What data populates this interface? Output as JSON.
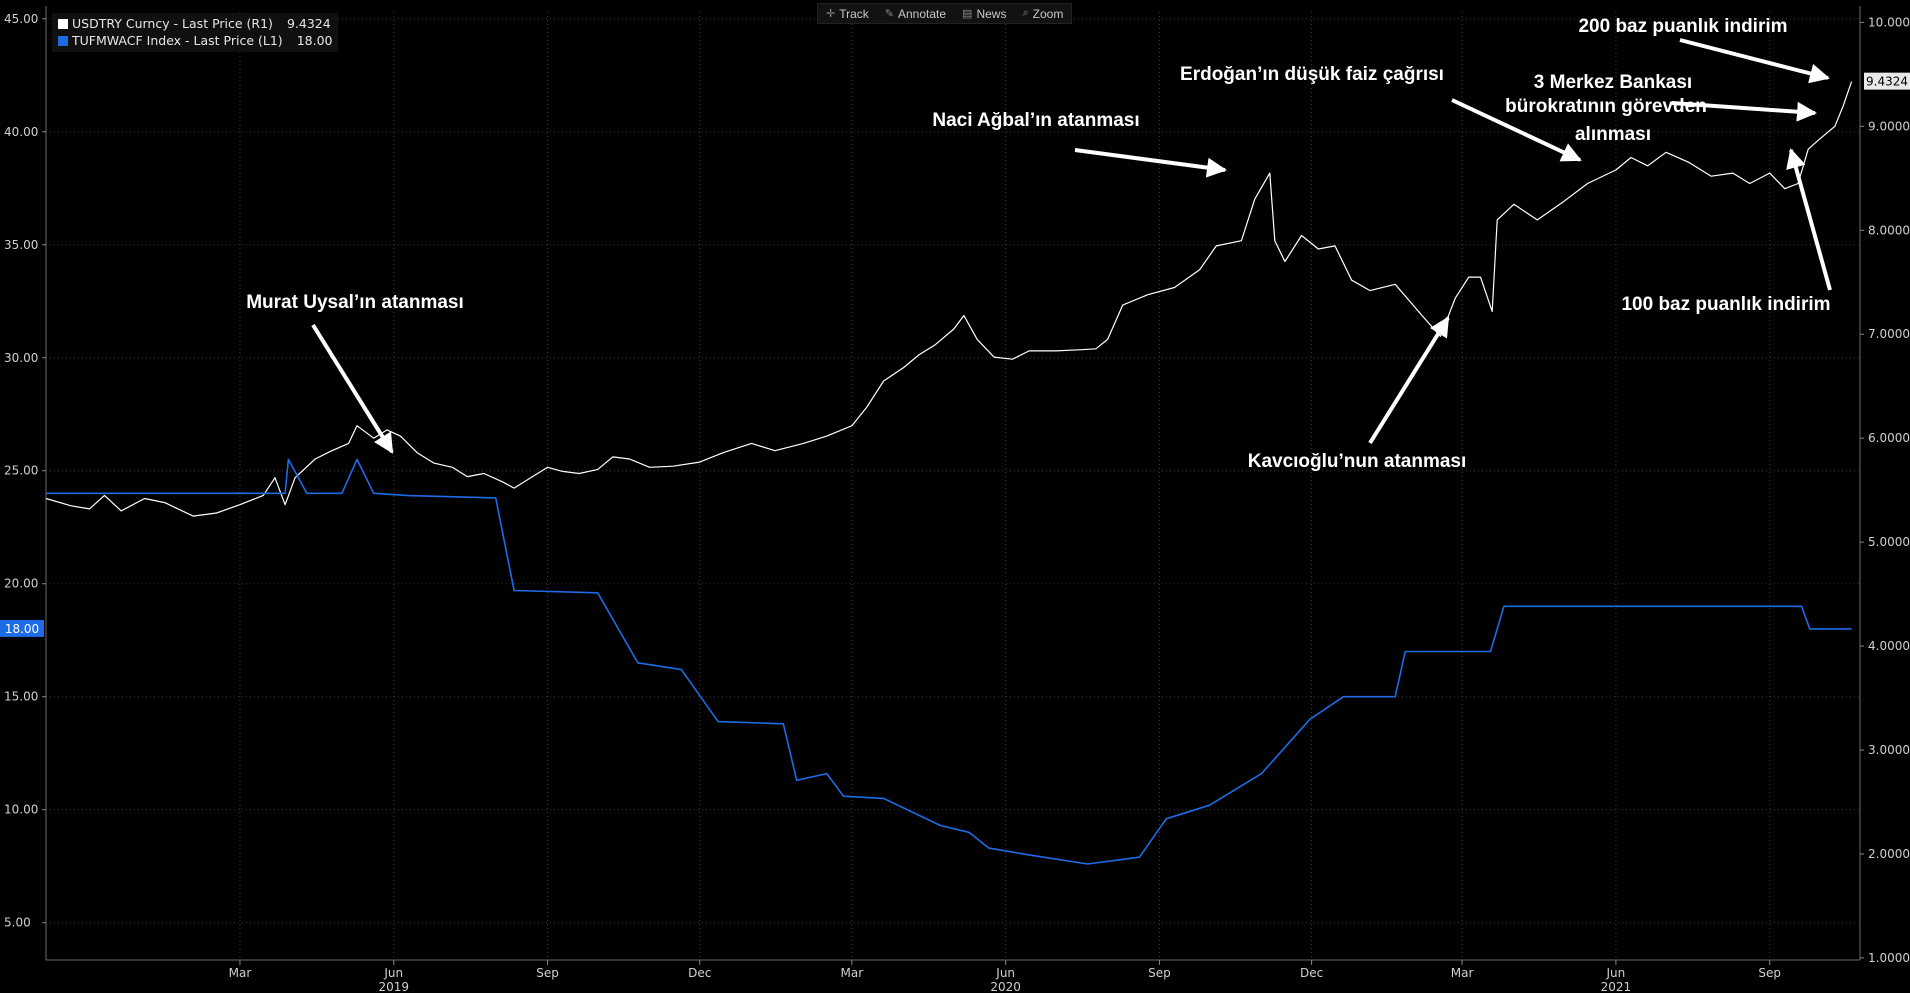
{
  "toolbar": {
    "items": [
      {
        "label": "Track",
        "icon": "crosshair-icon"
      },
      {
        "label": "Annotate",
        "icon": "pencil-icon"
      },
      {
        "label": "News",
        "icon": "newspaper-icon"
      },
      {
        "label": "Zoom",
        "icon": "magnifier-icon"
      }
    ]
  },
  "legend": [
    {
      "label": "USDTRY Curncy - Last Price (R1)",
      "value": "9.4324",
      "color": "#ffffff"
    },
    {
      "label": "TUFMWACF Index - Last Price (L1)",
      "value": "18.00",
      "color": "#1e6be6"
    }
  ],
  "chart_data": {
    "type": "line",
    "background": "#000000",
    "grid": "dotted",
    "x_axis": {
      "range": [
        "2018-11-05",
        "2021-10-25"
      ],
      "ticks": [
        {
          "date": "2019-03-01",
          "label": "Mar"
        },
        {
          "date": "2019-06-01",
          "label": "Jun"
        },
        {
          "date": "2019-09-01",
          "label": "Sep"
        },
        {
          "date": "2019-12-01",
          "label": "Dec"
        },
        {
          "date": "2020-03-01",
          "label": "Mar"
        },
        {
          "date": "2020-06-01",
          "label": "Jun"
        },
        {
          "date": "2020-09-01",
          "label": "Sep"
        },
        {
          "date": "2020-12-01",
          "label": "Dec"
        },
        {
          "date": "2021-03-01",
          "label": "Mar"
        },
        {
          "date": "2021-06-01",
          "label": "Jun"
        },
        {
          "date": "2021-09-01",
          "label": "Sep"
        }
      ],
      "years": [
        {
          "date": "2019-06-01",
          "label": "2019"
        },
        {
          "date": "2020-06-01",
          "label": "2020"
        },
        {
          "date": "2021-06-01",
          "label": "2021"
        }
      ]
    },
    "left_axis": {
      "ylim": [
        3.35,
        45.3
      ],
      "ticks": [
        5,
        10,
        15,
        20,
        25,
        30,
        35,
        40,
        45
      ]
    },
    "right_axis": {
      "ylim": [
        0.98,
        10.1
      ],
      "ticks": [
        1,
        2,
        3,
        4,
        5,
        6,
        7,
        8,
        9,
        10
      ]
    },
    "series": [
      {
        "name": "USDTRY Curncy - Last Price (R1)",
        "axis": "right",
        "color": "#ffffff",
        "last_label": "9.4324",
        "points": [
          [
            "2018-11-05",
            5.42
          ],
          [
            "2018-11-20",
            5.35
          ],
          [
            "2018-12-01",
            5.32
          ],
          [
            "2018-12-10",
            5.45
          ],
          [
            "2018-12-20",
            5.3
          ],
          [
            "2019-01-03",
            5.42
          ],
          [
            "2019-01-15",
            5.38
          ],
          [
            "2019-02-01",
            5.25
          ],
          [
            "2019-02-15",
            5.28
          ],
          [
            "2019-03-01",
            5.36
          ],
          [
            "2019-03-15",
            5.45
          ],
          [
            "2019-03-22",
            5.62
          ],
          [
            "2019-03-28",
            5.36
          ],
          [
            "2019-04-03",
            5.62
          ],
          [
            "2019-04-15",
            5.8
          ],
          [
            "2019-04-25",
            5.88
          ],
          [
            "2019-05-05",
            5.95
          ],
          [
            "2019-05-10",
            6.12
          ],
          [
            "2019-05-20",
            6.0
          ],
          [
            "2019-05-28",
            6.08
          ],
          [
            "2019-06-05",
            6.02
          ],
          [
            "2019-06-15",
            5.86
          ],
          [
            "2019-06-25",
            5.76
          ],
          [
            "2019-07-06",
            5.72
          ],
          [
            "2019-07-15",
            5.63
          ],
          [
            "2019-07-25",
            5.66
          ],
          [
            "2019-08-05",
            5.58
          ],
          [
            "2019-08-12",
            5.52
          ],
          [
            "2019-08-20",
            5.6
          ],
          [
            "2019-09-01",
            5.72
          ],
          [
            "2019-09-10",
            5.68
          ],
          [
            "2019-09-20",
            5.66
          ],
          [
            "2019-10-01",
            5.7
          ],
          [
            "2019-10-10",
            5.82
          ],
          [
            "2019-10-20",
            5.8
          ],
          [
            "2019-11-01",
            5.72
          ],
          [
            "2019-11-15",
            5.73
          ],
          [
            "2019-12-01",
            5.77
          ],
          [
            "2019-12-15",
            5.86
          ],
          [
            "2020-01-01",
            5.95
          ],
          [
            "2020-01-15",
            5.88
          ],
          [
            "2020-02-01",
            5.95
          ],
          [
            "2020-02-15",
            6.02
          ],
          [
            "2020-03-01",
            6.12
          ],
          [
            "2020-03-10",
            6.3
          ],
          [
            "2020-03-20",
            6.55
          ],
          [
            "2020-04-01",
            6.68
          ],
          [
            "2020-04-10",
            6.8
          ],
          [
            "2020-04-20",
            6.9
          ],
          [
            "2020-05-01",
            7.05
          ],
          [
            "2020-05-07",
            7.18
          ],
          [
            "2020-05-15",
            6.95
          ],
          [
            "2020-05-25",
            6.78
          ],
          [
            "2020-06-05",
            6.76
          ],
          [
            "2020-06-15",
            6.84
          ],
          [
            "2020-07-01",
            6.84
          ],
          [
            "2020-07-15",
            6.85
          ],
          [
            "2020-07-25",
            6.86
          ],
          [
            "2020-08-01",
            6.95
          ],
          [
            "2020-08-10",
            7.28
          ],
          [
            "2020-08-25",
            7.38
          ],
          [
            "2020-09-10",
            7.45
          ],
          [
            "2020-09-25",
            7.62
          ],
          [
            "2020-10-05",
            7.85
          ],
          [
            "2020-10-20",
            7.9
          ],
          [
            "2020-10-28",
            8.3
          ],
          [
            "2020-11-06",
            8.55
          ],
          [
            "2020-11-09",
            7.9
          ],
          [
            "2020-11-15",
            7.7
          ],
          [
            "2020-11-25",
            7.95
          ],
          [
            "2020-12-05",
            7.82
          ],
          [
            "2020-12-15",
            7.85
          ],
          [
            "2020-12-25",
            7.52
          ],
          [
            "2021-01-05",
            7.42
          ],
          [
            "2021-01-20",
            7.48
          ],
          [
            "2021-02-05",
            7.18
          ],
          [
            "2021-02-16",
            6.98
          ],
          [
            "2021-02-25",
            7.35
          ],
          [
            "2021-03-05",
            7.55
          ],
          [
            "2021-03-12",
            7.55
          ],
          [
            "2021-03-19",
            7.22
          ],
          [
            "2021-03-22",
            8.1
          ],
          [
            "2021-04-01",
            8.25
          ],
          [
            "2021-04-15",
            8.1
          ],
          [
            "2021-05-01",
            8.28
          ],
          [
            "2021-05-15",
            8.45
          ],
          [
            "2021-06-01",
            8.58
          ],
          [
            "2021-06-10",
            8.7
          ],
          [
            "2021-06-20",
            8.62
          ],
          [
            "2021-07-01",
            8.75
          ],
          [
            "2021-07-15",
            8.65
          ],
          [
            "2021-07-28",
            8.52
          ],
          [
            "2021-08-10",
            8.55
          ],
          [
            "2021-08-20",
            8.45
          ],
          [
            "2021-09-01",
            8.55
          ],
          [
            "2021-09-10",
            8.4
          ],
          [
            "2021-09-18",
            8.45
          ],
          [
            "2021-09-24",
            8.78
          ],
          [
            "2021-10-01",
            8.88
          ],
          [
            "2021-10-10",
            9.0
          ],
          [
            "2021-10-15",
            9.2
          ],
          [
            "2021-10-20",
            9.43
          ]
        ]
      },
      {
        "name": "TUFMWACF Index - Last Price (L1)",
        "axis": "left",
        "color": "#1e6be6",
        "last_label": "18.00",
        "points": [
          [
            "2018-11-05",
            24.0
          ],
          [
            "2019-03-28",
            24.0
          ],
          [
            "2019-03-30",
            25.5
          ],
          [
            "2019-04-10",
            24.0
          ],
          [
            "2019-05-01",
            24.0
          ],
          [
            "2019-05-10",
            25.5
          ],
          [
            "2019-05-20",
            24.0
          ],
          [
            "2019-06-10",
            23.9
          ],
          [
            "2019-08-01",
            23.8
          ],
          [
            "2019-08-12",
            19.7
          ],
          [
            "2019-10-01",
            19.6
          ],
          [
            "2019-10-25",
            16.5
          ],
          [
            "2019-11-20",
            16.2
          ],
          [
            "2019-12-12",
            13.9
          ],
          [
            "2020-01-20",
            13.8
          ],
          [
            "2020-01-28",
            11.3
          ],
          [
            "2020-02-15",
            11.6
          ],
          [
            "2020-02-25",
            10.6
          ],
          [
            "2020-03-20",
            10.5
          ],
          [
            "2020-04-23",
            9.3
          ],
          [
            "2020-05-10",
            9.0
          ],
          [
            "2020-05-22",
            8.3
          ],
          [
            "2020-06-15",
            8.0
          ],
          [
            "2020-07-20",
            7.6
          ],
          [
            "2020-08-20",
            7.9
          ],
          [
            "2020-09-05",
            9.6
          ],
          [
            "2020-10-01",
            10.2
          ],
          [
            "2020-11-01",
            11.6
          ],
          [
            "2020-11-30",
            14.0
          ],
          [
            "2020-12-20",
            15.0
          ],
          [
            "2021-01-20",
            15.0
          ],
          [
            "2021-01-26",
            17.0
          ],
          [
            "2021-03-18",
            17.0
          ],
          [
            "2021-03-26",
            19.0
          ],
          [
            "2021-09-20",
            19.0
          ],
          [
            "2021-09-25",
            18.0
          ],
          [
            "2021-10-20",
            18.0
          ]
        ]
      }
    ],
    "annotations": [
      {
        "text": "Murat Uysal’ın atanması",
        "target_date": "2019-07-10",
        "target_value": 5.72
      },
      {
        "text": "Naci Ağbal’ın atanması",
        "target_date": "2020-11-06",
        "target_value": 8.52
      },
      {
        "text": "Erdoğan’ın düşük faiz çağrısı",
        "target_date": "2021-06-01",
        "target_value": 8.65
      },
      {
        "text": "3 Merkez Bankası",
        "text2": "bürokratının görevden",
        "text3": "alınması",
        "target_date": "2021-10-15",
        "target_value": 9.18
      },
      {
        "text": "200 baz puanlık indirim",
        "target_date": "2021-10-20",
        "target_value": 9.42
      },
      {
        "text": "100 baz puanlık indirim",
        "target_date": "2021-09-24",
        "target_value": 8.72
      },
      {
        "text": "Kavcıoğlu’nun atanması",
        "target_date": "2021-03-22",
        "target_value": 7.1
      }
    ]
  }
}
